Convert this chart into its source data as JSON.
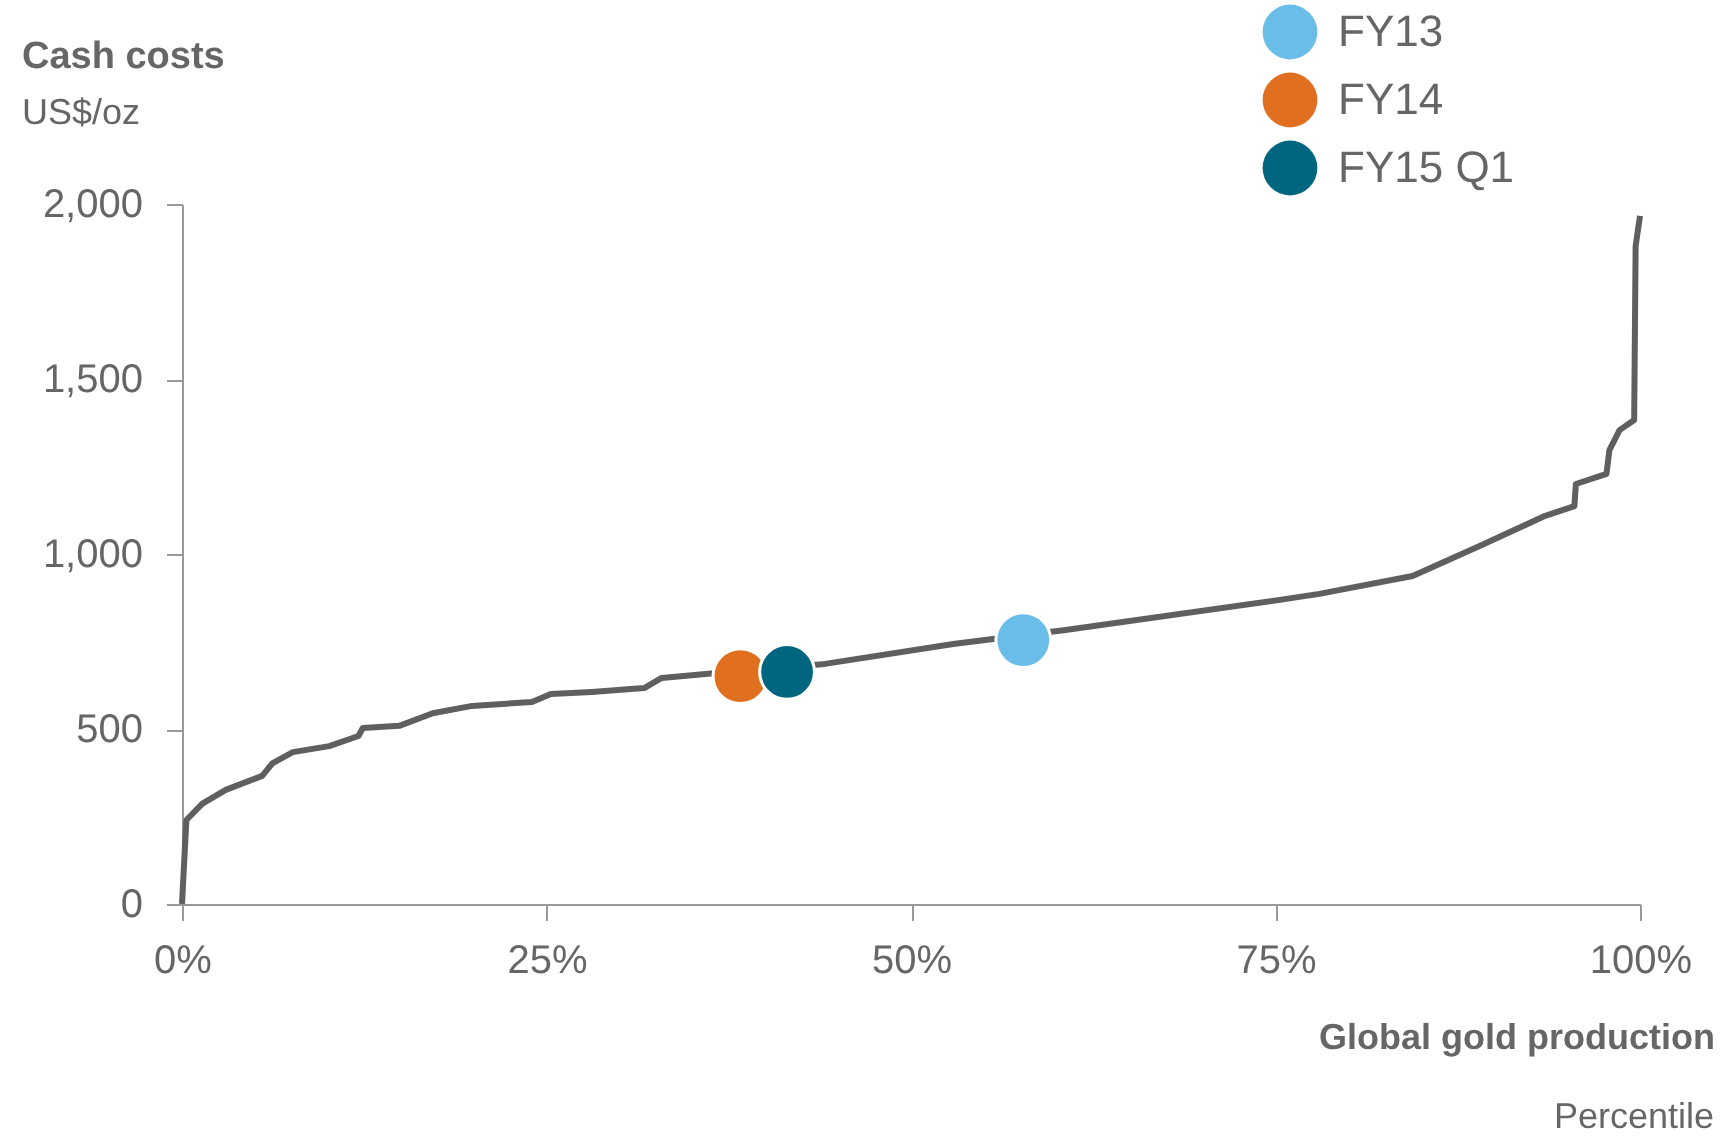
{
  "chart_data": {
    "type": "line",
    "title": "Cash costs",
    "subtitle": "US$/oz",
    "xlabel": "Global gold production",
    "annotations": [
      "Percentile"
    ],
    "xlim": [
      0,
      100
    ],
    "ylim": [
      0,
      2000
    ],
    "xticks": [
      {
        "value": 0,
        "label": "0%"
      },
      {
        "value": 25,
        "label": "25%"
      },
      {
        "value": 50,
        "label": "50%"
      },
      {
        "value": 75,
        "label": "75%"
      },
      {
        "value": 100,
        "label": "100%"
      }
    ],
    "yticks": [
      0,
      500,
      {
        "value": 1000,
        "label": "1,000"
      },
      {
        "value": 1500,
        "label": "1,500"
      },
      {
        "value": 2000,
        "label": "2,000"
      }
    ],
    "grid": false,
    "legend": "top right",
    "series": [
      {
        "color": "#5f5f5f",
        "x": [
          0,
          0.3,
          1.4,
          3,
          5.5,
          6.2,
          7.6,
          10.1,
          12.1,
          12.4,
          14.9,
          17.2,
          19.9,
          24,
          25.3,
          28.1,
          31.7,
          32.9,
          35.9,
          44.1,
          52.9,
          60.6,
          75.3,
          78,
          84.4,
          89,
          93.5,
          95.5,
          95.6,
          97.7,
          97.9,
          98.6,
          99.6,
          99.7,
          100
        ],
        "values": [
          0,
          240,
          287,
          326,
          366,
          402,
          434,
          451,
          480,
          503,
          509,
          545,
          566,
          577,
          600,
          606,
          617,
          646,
          657,
          686,
          743,
          783,
          869,
          886,
          937,
          1023,
          1109,
          1137,
          1200,
          1229,
          1297,
          1354,
          1383,
          1880,
          1966
        ]
      },
      {
        "type": "scatter",
        "marker": "circle",
        "name": "FY13",
        "color": "#6bbde9",
        "x": [
          57.7
        ],
        "values": [
          754
        ]
      },
      {
        "type": "scatter",
        "marker": "circle",
        "name": "FY14",
        "color": "#e07020",
        "x": [
          38.3
        ],
        "values": [
          651
        ]
      },
      {
        "type": "scatter",
        "marker": "circle",
        "name": "FY15 Q1",
        "color": "#006680",
        "x": [
          41.5
        ],
        "values": [
          663
        ]
      }
    ]
  }
}
